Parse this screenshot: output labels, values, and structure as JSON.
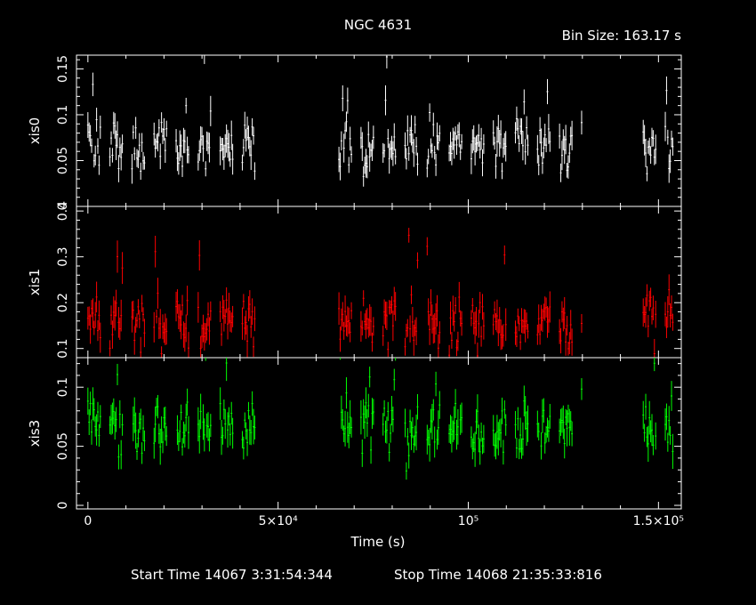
{
  "title": "NGC 4631",
  "bin_size_label": "Bin Size: 163.17 s",
  "footer": {
    "start": "Start Time 14067  3:31:54:344",
    "stop": "Stop Time 14068 21:35:33:816"
  },
  "colors": {
    "background": "#000000",
    "axes": "#ffffff",
    "xis0": "#ffffff",
    "xis1": "#ff0000",
    "xis3": "#00ff00"
  },
  "chart_data": {
    "type": "scatter",
    "xlabel": "Time (s)",
    "xlim": [
      -3000,
      156000
    ],
    "x_ticks": [
      {
        "value": 0,
        "label": "0"
      },
      {
        "value": 50000,
        "label": "5×10⁴"
      },
      {
        "value": 100000,
        "label": "10⁵"
      },
      {
        "value": 150000,
        "label": "1.5×10⁵"
      }
    ],
    "observation_segments": [
      [
        0,
        44000
      ],
      [
        66000,
        130000
      ],
      [
        146000,
        154000
      ]
    ],
    "panels": [
      {
        "name": "xis0",
        "ylabel": "xis0",
        "color": "#ffffff",
        "ylim": [
          0.0,
          0.165
        ],
        "y_ticks": [
          {
            "value": 0,
            "label": "0"
          },
          {
            "value": 0.05,
            "label": "0.05"
          },
          {
            "value": 0.1,
            "label": "0.1"
          },
          {
            "value": 0.15,
            "label": "0.15"
          }
        ],
        "typical_rate": 0.065,
        "scatter": 0.014
      },
      {
        "name": "xis1",
        "ylabel": "xis1",
        "color": "#ff0000",
        "ylim": [
          0.08,
          0.41
        ],
        "y_ticks": [
          {
            "value": 0.1,
            "label": "0.1"
          },
          {
            "value": 0.2,
            "label": "0.2"
          },
          {
            "value": 0.3,
            "label": "0.3"
          },
          {
            "value": 0.4,
            "label": "0.4"
          }
        ],
        "typical_rate": 0.16,
        "scatter": 0.03
      },
      {
        "name": "xis3",
        "ylabel": "xis3",
        "color": "#00ff00",
        "ylim": [
          -0.003,
          0.125
        ],
        "y_ticks": [
          {
            "value": 0,
            "label": "0"
          },
          {
            "value": 0.05,
            "label": "0.05"
          },
          {
            "value": 0.1,
            "label": "0.1"
          }
        ],
        "typical_rate": 0.068,
        "scatter": 0.013
      }
    ]
  }
}
